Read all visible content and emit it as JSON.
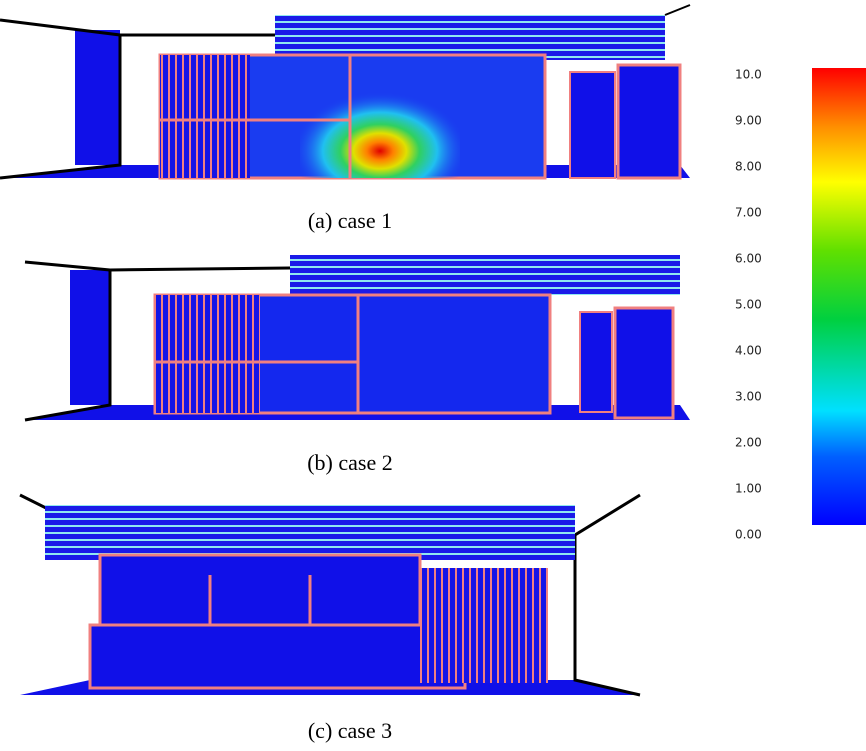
{
  "panels": [
    {
      "caption": "(a) case 1"
    },
    {
      "caption": "(b) case 2"
    },
    {
      "caption": "(c) case 3"
    }
  ],
  "colorbar": {
    "lim": [
      0,
      10
    ],
    "ticks": [
      {
        "value": 10,
        "label": "10.0"
      },
      {
        "value": 9,
        "label": "9.00"
      },
      {
        "value": 8,
        "label": "8.00"
      },
      {
        "value": 7,
        "label": "7.00"
      },
      {
        "value": 6,
        "label": "6.00"
      },
      {
        "value": 5,
        "label": "5.00"
      },
      {
        "value": 4,
        "label": "4.00"
      },
      {
        "value": 3,
        "label": "3.00"
      },
      {
        "value": 2,
        "label": "2.00"
      },
      {
        "value": 1,
        "label": "1.00"
      },
      {
        "value": 0,
        "label": "0.00"
      }
    ]
  }
}
